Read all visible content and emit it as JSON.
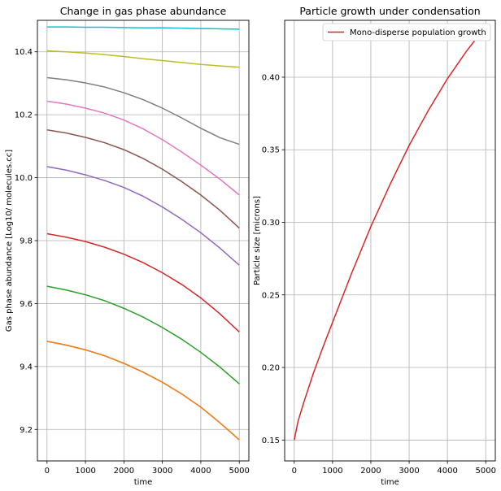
{
  "chart_data": [
    {
      "type": "line",
      "title": "Change in gas phase abundance",
      "xlabel": "time",
      "ylabel": "Gas phase abundance [Log10/ molecules.cc]",
      "xlim": [
        -250,
        5250
      ],
      "ylim": [
        9.1,
        10.5
      ],
      "xticks": [
        "0",
        "1000",
        "2000",
        "3000",
        "4000",
        "5000"
      ],
      "yticks": [
        "9.2",
        "9.4",
        "9.6",
        "9.8",
        "10.0",
        "10.2",
        "10.4"
      ],
      "grid": true,
      "x": [
        0,
        500,
        1000,
        1500,
        2000,
        2500,
        3000,
        3500,
        4000,
        4500,
        5000
      ],
      "series": [
        {
          "color": "#1f77b4",
          "values": [
            9.48,
            9.468,
            9.453,
            9.434,
            9.41,
            9.382,
            9.35,
            9.313,
            9.271,
            9.221,
            9.167
          ]
        },
        {
          "color": "#ff7f0e",
          "values": [
            9.48,
            9.468,
            9.453,
            9.434,
            9.41,
            9.382,
            9.35,
            9.313,
            9.271,
            9.221,
            9.167
          ]
        },
        {
          "color": "#2ca02c",
          "values": [
            9.655,
            9.643,
            9.628,
            9.609,
            9.585,
            9.557,
            9.524,
            9.487,
            9.445,
            9.398,
            9.345
          ]
        },
        {
          "color": "#d62728",
          "values": [
            9.822,
            9.811,
            9.797,
            9.779,
            9.757,
            9.73,
            9.698,
            9.661,
            9.618,
            9.567,
            9.51
          ]
        },
        {
          "color": "#9467bd",
          "values": [
            10.035,
            10.024,
            10.009,
            9.991,
            9.969,
            9.941,
            9.907,
            9.868,
            9.825,
            9.776,
            9.722
          ]
        },
        {
          "color": "#8c564b",
          "values": [
            10.152,
            10.142,
            10.128,
            10.111,
            10.089,
            10.061,
            10.027,
            9.988,
            9.945,
            9.896,
            9.84
          ]
        },
        {
          "color": "#e377c2",
          "values": [
            10.243,
            10.234,
            10.221,
            10.205,
            10.183,
            10.155,
            10.121,
            10.082,
            10.04,
            9.995,
            9.945
          ]
        },
        {
          "color": "#7f7f7f",
          "values": [
            10.318,
            10.311,
            10.301,
            10.288,
            10.27,
            10.248,
            10.221,
            10.19,
            10.157,
            10.127,
            10.106
          ]
        },
        {
          "color": "#bcbd22",
          "values": [
            10.403,
            10.4,
            10.396,
            10.391,
            10.385,
            10.378,
            10.372,
            10.366,
            10.36,
            10.355,
            10.351
          ]
        },
        {
          "color": "#17becf",
          "values": [
            10.479,
            10.479,
            10.478,
            10.478,
            10.477,
            10.476,
            10.476,
            10.475,
            10.474,
            10.473,
            10.472
          ]
        }
      ]
    },
    {
      "type": "line",
      "title": "Particle growth under condensation",
      "xlabel": "time",
      "ylabel": "Particle size [microns]",
      "xlim": [
        -250,
        5250
      ],
      "ylim": [
        0.1356,
        0.4392
      ],
      "xticks": [
        "0",
        "1000",
        "2000",
        "3000",
        "4000",
        "5000"
      ],
      "yticks": [
        "0.15",
        "0.20",
        "0.25",
        "0.30",
        "0.35",
        "0.40"
      ],
      "grid": true,
      "legend": "top-right",
      "x": [
        0,
        100,
        250,
        500,
        750,
        1000,
        1500,
        2000,
        2500,
        3000,
        3500,
        4000,
        4500,
        5000
      ],
      "series": [
        {
          "name": "Mono-disperse population growth",
          "color": "#d62728",
          "values": [
            0.15,
            0.163,
            0.176,
            0.196,
            0.214,
            0.231,
            0.265,
            0.297,
            0.326,
            0.353,
            0.377,
            0.399,
            0.418,
            0.435
          ]
        }
      ]
    }
  ]
}
